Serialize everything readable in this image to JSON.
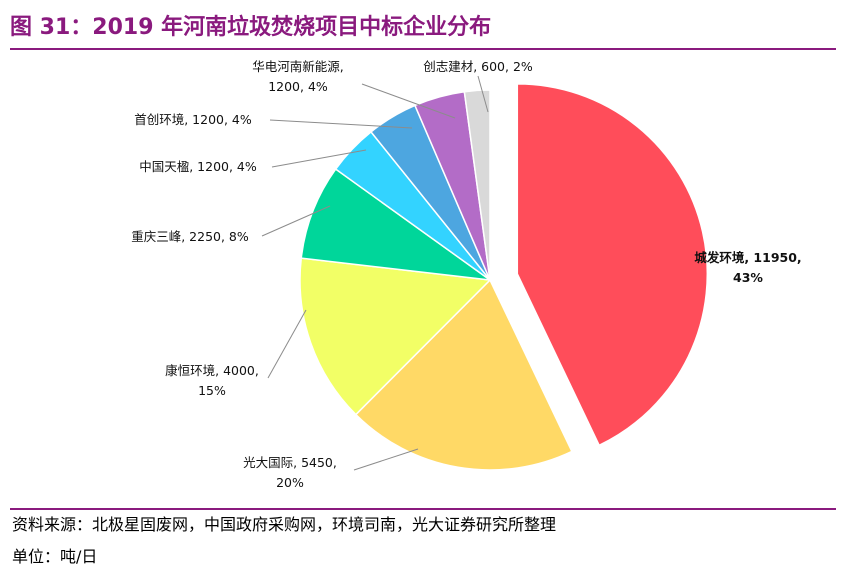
{
  "title": "图 31：2019 年河南垃圾焚烧项目中标企业分布",
  "footer": {
    "source": "资料来源：北极星固废网，中国政府采购网，环境司南，光大证券研究所整理",
    "unit": "单位：吨/日"
  },
  "chart_data": {
    "type": "pie",
    "unit": "吨/日",
    "slices": [
      {
        "name": "城发环境",
        "value": 11950,
        "pct": "43%",
        "color": "#ff4d5a",
        "label_line1": "城发环境, 11950,",
        "label_line2": "43%"
      },
      {
        "name": "光大国际",
        "value": 5450,
        "pct": "20%",
        "color": "#ffd966",
        "label_line1": "光大国际, 5450,",
        "label_line2": "20%"
      },
      {
        "name": "康恒环境",
        "value": 4000,
        "pct": "15%",
        "color": "#f2ff66",
        "label_line1": "康恒环境, 4000,",
        "label_line2": "15%"
      },
      {
        "name": "重庆三峰",
        "value": 2250,
        "pct": "8%",
        "color": "#00d69a",
        "label_line1": "重庆三峰, 2250, 8%",
        "label_line2": ""
      },
      {
        "name": "中国天楹",
        "value": 1200,
        "pct": "4%",
        "color": "#33d3ff",
        "label_line1": "中国天楹, 1200, 4%",
        "label_line2": ""
      },
      {
        "name": "首创环境",
        "value": 1200,
        "pct": "4%",
        "color": "#4da6e0",
        "label_line1": "首创环境, 1200, 4%",
        "label_line2": ""
      },
      {
        "name": "华电河南新能源",
        "value": 1200,
        "pct": "4%",
        "color": "#b36cc7",
        "label_line1": "华电河南新能源,",
        "label_line2": "1200, 4%"
      },
      {
        "name": "创志建材",
        "value": 600,
        "pct": "2%",
        "color": "#d9d9d9",
        "label_line1": "创志建材, 600, 2%",
        "label_line2": ""
      }
    ]
  }
}
